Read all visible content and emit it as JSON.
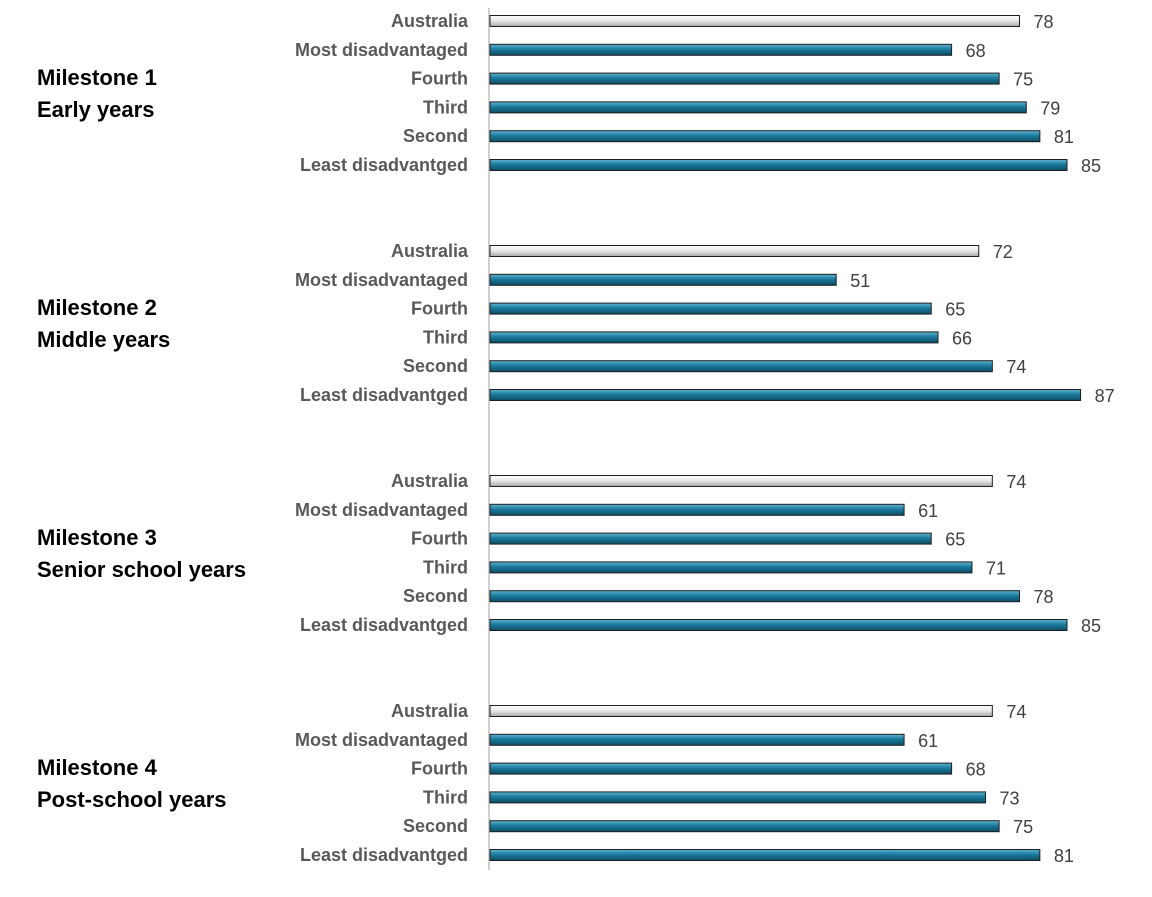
{
  "chart_data": {
    "type": "bar",
    "orientation": "horizontal",
    "xlim": [
      0,
      100
    ],
    "grid": false,
    "colors": {
      "highlight": "#1a7a9c",
      "australia": "#d9d9d9",
      "outline": "#1f1f1f",
      "axis": "#bfbfbf"
    },
    "groups": [
      {
        "title_line1": "Milestone 1",
        "title_line2": "Early years",
        "bars": [
          {
            "label": "Australia",
            "value": 78,
            "series": "australia"
          },
          {
            "label": "Most disadvantaged",
            "value": 68,
            "series": "highlight"
          },
          {
            "label": "Fourth",
            "value": 75,
            "series": "highlight"
          },
          {
            "label": "Third",
            "value": 79,
            "series": "highlight"
          },
          {
            "label": "Second",
            "value": 81,
            "series": "highlight"
          },
          {
            "label": "Least disadvantged",
            "value": 85,
            "series": "highlight"
          }
        ]
      },
      {
        "title_line1": "Milestone 2",
        "title_line2": "Middle years",
        "bars": [
          {
            "label": "Australia",
            "value": 72,
            "series": "australia"
          },
          {
            "label": "Most disadvantaged",
            "value": 51,
            "series": "highlight"
          },
          {
            "label": "Fourth",
            "value": 65,
            "series": "highlight"
          },
          {
            "label": "Third",
            "value": 66,
            "series": "highlight"
          },
          {
            "label": "Second",
            "value": 74,
            "series": "highlight"
          },
          {
            "label": "Least disadvantged",
            "value": 87,
            "series": "highlight"
          }
        ]
      },
      {
        "title_line1": "Milestone 3",
        "title_line2": "Senior school years",
        "bars": [
          {
            "label": "Australia",
            "value": 74,
            "series": "australia"
          },
          {
            "label": "Most disadvantaged",
            "value": 61,
            "series": "highlight"
          },
          {
            "label": "Fourth",
            "value": 65,
            "series": "highlight"
          },
          {
            "label": "Third",
            "value": 71,
            "series": "highlight"
          },
          {
            "label": "Second",
            "value": 78,
            "series": "highlight"
          },
          {
            "label": "Least disadvantged",
            "value": 85,
            "series": "highlight"
          }
        ]
      },
      {
        "title_line1": "Milestone 4",
        "title_line2": "Post-school years",
        "bars": [
          {
            "label": "Australia",
            "value": 74,
            "series": "australia"
          },
          {
            "label": "Most disadvantaged",
            "value": 61,
            "series": "highlight"
          },
          {
            "label": "Fourth",
            "value": 68,
            "series": "highlight"
          },
          {
            "label": "Third",
            "value": 73,
            "series": "highlight"
          },
          {
            "label": "Second",
            "value": 75,
            "series": "highlight"
          },
          {
            "label": "Least disadvantged",
            "value": 81,
            "series": "highlight"
          }
        ]
      }
    ]
  }
}
